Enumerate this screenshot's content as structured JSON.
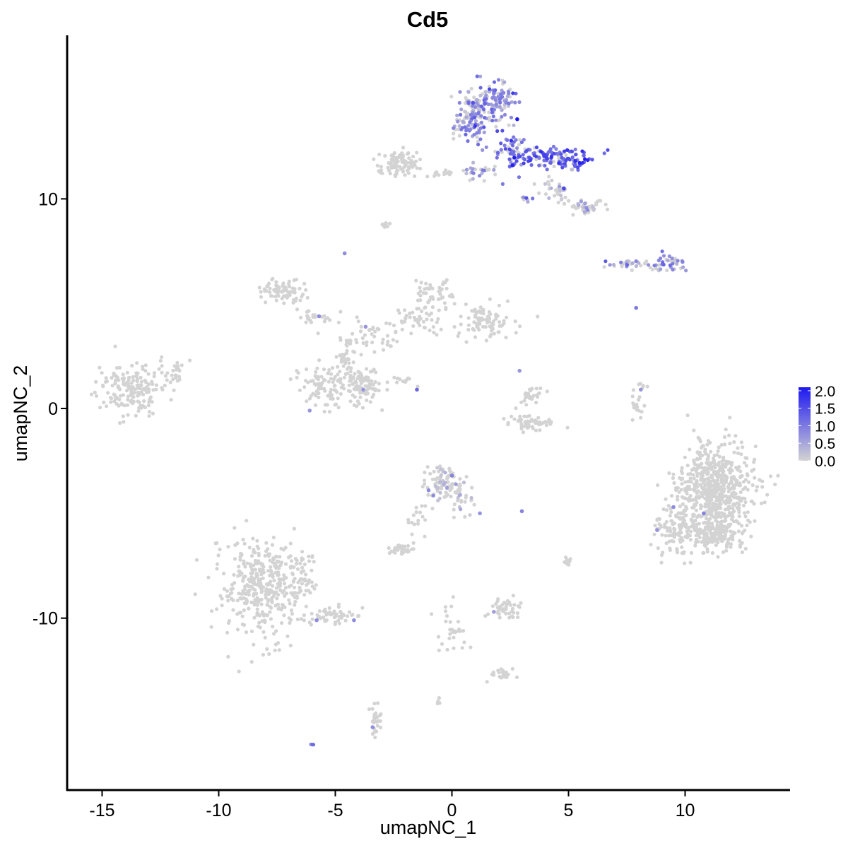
{
  "chart_data": {
    "type": "scatter",
    "title": "Cd5",
    "xlabel": "umapNC_1",
    "ylabel": "umapNC_2",
    "xlim": [
      -16.5,
      14.5
    ],
    "ylim": [
      -18.2,
      17.8
    ],
    "xticks": [
      -15,
      -10,
      -5,
      0,
      5,
      10
    ],
    "xtick_labels": [
      "-15",
      "-10",
      "-5",
      "0",
      "5",
      "10"
    ],
    "yticks": [
      -10,
      0,
      10
    ],
    "ytick_labels": [
      "-10",
      "0",
      "10"
    ],
    "grid": false,
    "legend": {
      "placement": "right",
      "type": "colorbar",
      "min": 0.0,
      "max": 2.1,
      "ticks": [
        0.0,
        0.5,
        1.0,
        1.5,
        2.0
      ],
      "tick_labels": [
        "0.0",
        "0.5",
        "1.0",
        "1.5",
        "2.0"
      ],
      "low_color": "#d3d3d3",
      "high_color": "#1e18f0"
    },
    "clusters": [
      {
        "cx": 0.9,
        "cy": 14.0,
        "rx": 0.65,
        "ry": 1.4,
        "n": 150,
        "expr": 0.75
      },
      {
        "cx": 2.1,
        "cy": 14.6,
        "rx": 0.6,
        "ry": 0.8,
        "n": 90,
        "expr": 0.85
      },
      {
        "cx": 2.6,
        "cy": 12.3,
        "rx": 0.55,
        "ry": 0.8,
        "n": 50,
        "expr": 1.1
      },
      {
        "cx": 4.2,
        "cy": 12.0,
        "rx": 1.5,
        "ry": 0.45,
        "n": 110,
        "expr": 1.3
      },
      {
        "cx": 5.4,
        "cy": 11.8,
        "rx": 0.3,
        "ry": 0.35,
        "n": 25,
        "expr": 1.3
      },
      {
        "cx": 1.2,
        "cy": 11.2,
        "rx": 0.8,
        "ry": 0.45,
        "n": 25,
        "expr": 0.55
      },
      {
        "cx": 3.2,
        "cy": 10.0,
        "rx": 0.25,
        "ry": 0.2,
        "n": 8,
        "expr": 0.8
      },
      {
        "cx": 4.5,
        "cy": 10.4,
        "rx": 0.6,
        "ry": 0.5,
        "n": 30,
        "expr": 0.2
      },
      {
        "cx": 5.8,
        "cy": 9.6,
        "rx": 0.7,
        "ry": 0.3,
        "n": 45,
        "expr": 0.15
      },
      {
        "cx": -2.2,
        "cy": 11.7,
        "rx": 1.0,
        "ry": 0.55,
        "n": 90,
        "expr": 0.0
      },
      {
        "cx": -0.4,
        "cy": 11.2,
        "rx": 0.6,
        "ry": 0.15,
        "n": 12,
        "expr": 0.0
      },
      {
        "cx": -2.9,
        "cy": 8.8,
        "rx": 0.2,
        "ry": 0.15,
        "n": 10,
        "expr": 0.0
      },
      {
        "cx": 7.6,
        "cy": 6.9,
        "rx": 0.9,
        "ry": 0.2,
        "n": 30,
        "expr": 0.55
      },
      {
        "cx": 9.3,
        "cy": 6.9,
        "rx": 0.8,
        "ry": 0.35,
        "n": 40,
        "expr": 0.7
      },
      {
        "cx": -7.2,
        "cy": 5.6,
        "rx": 1.0,
        "ry": 0.5,
        "n": 80,
        "expr": 0.0
      },
      {
        "cx": -5.9,
        "cy": 4.4,
        "rx": 0.9,
        "ry": 0.4,
        "n": 25,
        "expr": 0.0
      },
      {
        "cx": -3.6,
        "cy": 3.4,
        "rx": 1.4,
        "ry": 0.7,
        "n": 45,
        "expr": 0.0
      },
      {
        "cx": -1.4,
        "cy": 4.2,
        "rx": 1.3,
        "ry": 0.6,
        "n": 45,
        "expr": 0.0
      },
      {
        "cx": -0.8,
        "cy": 5.5,
        "rx": 0.7,
        "ry": 0.8,
        "n": 45,
        "expr": 0.0
      },
      {
        "cx": 1.3,
        "cy": 4.2,
        "rx": 1.1,
        "ry": 0.7,
        "n": 90,
        "expr": 0.0
      },
      {
        "cx": -5.5,
        "cy": 1.0,
        "rx": 1.0,
        "ry": 0.9,
        "n": 90,
        "expr": 0.0
      },
      {
        "cx": -3.8,
        "cy": 1.1,
        "rx": 0.7,
        "ry": 0.9,
        "n": 90,
        "expr": 0.0
      },
      {
        "cx": -4.6,
        "cy": 2.4,
        "rx": 0.5,
        "ry": 1.0,
        "n": 35,
        "expr": 0.0
      },
      {
        "cx": -2.0,
        "cy": 1.4,
        "rx": 0.7,
        "ry": 0.3,
        "n": 10,
        "expr": 0.0
      },
      {
        "cx": -13.8,
        "cy": 0.9,
        "rx": 1.3,
        "ry": 1.0,
        "n": 170,
        "expr": 0.0
      },
      {
        "cx": -12.0,
        "cy": 1.8,
        "rx": 0.7,
        "ry": 0.5,
        "n": 25,
        "expr": 0.0
      },
      {
        "cx": 3.3,
        "cy": 0.6,
        "rx": 0.5,
        "ry": 0.5,
        "n": 30,
        "expr": 0.0
      },
      {
        "cx": 3.5,
        "cy": -0.7,
        "rx": 1.1,
        "ry": 0.35,
        "n": 55,
        "expr": 0.0
      },
      {
        "cx": 8.0,
        "cy": 0.3,
        "rx": 0.25,
        "ry": 0.8,
        "n": 20,
        "expr": 0.0
      },
      {
        "cx": 11.3,
        "cy": -3.9,
        "rx": 1.5,
        "ry": 2.0,
        "n": 620,
        "expr": 0.0
      },
      {
        "cx": 9.6,
        "cy": -5.7,
        "rx": 0.8,
        "ry": 1.2,
        "n": 110,
        "expr": 0.0
      },
      {
        "cx": 11.2,
        "cy": -6.0,
        "rx": 1.3,
        "ry": 0.7,
        "n": 140,
        "expr": 0.0
      },
      {
        "cx": -0.4,
        "cy": -3.6,
        "rx": 0.65,
        "ry": 0.7,
        "n": 80,
        "expr": 0.06
      },
      {
        "cx": 0.4,
        "cy": -4.2,
        "rx": 0.5,
        "ry": 0.8,
        "n": 35,
        "expr": 0.06
      },
      {
        "cx": -2.3,
        "cy": -6.7,
        "rx": 0.4,
        "ry": 0.25,
        "n": 30,
        "expr": 0.0
      },
      {
        "cx": -1.5,
        "cy": -5.4,
        "rx": 0.4,
        "ry": 0.9,
        "n": 18,
        "expr": 0.0
      },
      {
        "cx": -8.3,
        "cy": -8.5,
        "rx": 1.4,
        "ry": 2.2,
        "n": 340,
        "expr": 0.0
      },
      {
        "cx": -6.6,
        "cy": -8.3,
        "rx": 0.8,
        "ry": 1.3,
        "n": 80,
        "expr": 0.0
      },
      {
        "cx": -5.0,
        "cy": -9.9,
        "rx": 1.1,
        "ry": 0.4,
        "n": 55,
        "expr": 0.0
      },
      {
        "cx": 2.3,
        "cy": -9.5,
        "rx": 0.7,
        "ry": 0.4,
        "n": 45,
        "expr": 0.0
      },
      {
        "cx": 0.0,
        "cy": -10.5,
        "rx": 0.6,
        "ry": 1.3,
        "n": 30,
        "expr": 0.0
      },
      {
        "cx": 2.1,
        "cy": -12.7,
        "rx": 0.6,
        "ry": 0.25,
        "n": 25,
        "expr": 0.0
      },
      {
        "cx": -3.3,
        "cy": -14.8,
        "rx": 0.25,
        "ry": 0.8,
        "n": 25,
        "expr": 0.0
      },
      {
        "cx": 5.0,
        "cy": -7.3,
        "rx": 0.2,
        "ry": 0.3,
        "n": 8,
        "expr": 0.0
      },
      {
        "cx": -0.6,
        "cy": -13.9,
        "rx": 0.15,
        "ry": 0.15,
        "n": 4,
        "expr": 0.0
      },
      {
        "cx": -6.0,
        "cy": -16.0,
        "rx": 0.1,
        "ry": 0.1,
        "n": 3,
        "expr": 0.8
      }
    ],
    "highlight_points": [
      {
        "x": 2.8,
        "y": 13.8,
        "v": 2.1
      },
      {
        "x": 2.6,
        "y": 11.6,
        "v": 2.0
      },
      {
        "x": 4.8,
        "y": 10.5,
        "v": 1.6
      },
      {
        "x": 7.9,
        "y": 4.8,
        "v": 1.0
      },
      {
        "x": -4.6,
        "y": 7.4,
        "v": 0.8
      },
      {
        "x": -5.7,
        "y": 4.4,
        "v": 0.8
      },
      {
        "x": -3.7,
        "y": 3.9,
        "v": 0.7
      },
      {
        "x": -1.5,
        "y": 0.9,
        "v": 1.2
      },
      {
        "x": -3.8,
        "y": 0.9,
        "v": 0.7
      },
      {
        "x": -6.1,
        "y": -0.1,
        "v": 0.7
      },
      {
        "x": 2.9,
        "y": 1.8,
        "v": 0.7
      },
      {
        "x": 8.1,
        "y": 0.9,
        "v": 0.7
      },
      {
        "x": 10.8,
        "y": -5.0,
        "v": 0.9
      },
      {
        "x": 9.5,
        "y": -4.7,
        "v": 0.8
      },
      {
        "x": 8.8,
        "y": -5.8,
        "v": 0.7
      },
      {
        "x": 0.0,
        "y": -3.2,
        "v": 0.9
      },
      {
        "x": -1.0,
        "y": -3.9,
        "v": 0.8
      },
      {
        "x": 3.0,
        "y": -4.9,
        "v": 0.9
      },
      {
        "x": 1.2,
        "y": -5.0,
        "v": 0.7
      },
      {
        "x": -4.2,
        "y": -10.1,
        "v": 0.8
      },
      {
        "x": -5.8,
        "y": -10.1,
        "v": 0.8
      },
      {
        "x": 1.8,
        "y": -9.7,
        "v": 0.6
      },
      {
        "x": -3.4,
        "y": -15.2,
        "v": 0.8
      }
    ]
  }
}
